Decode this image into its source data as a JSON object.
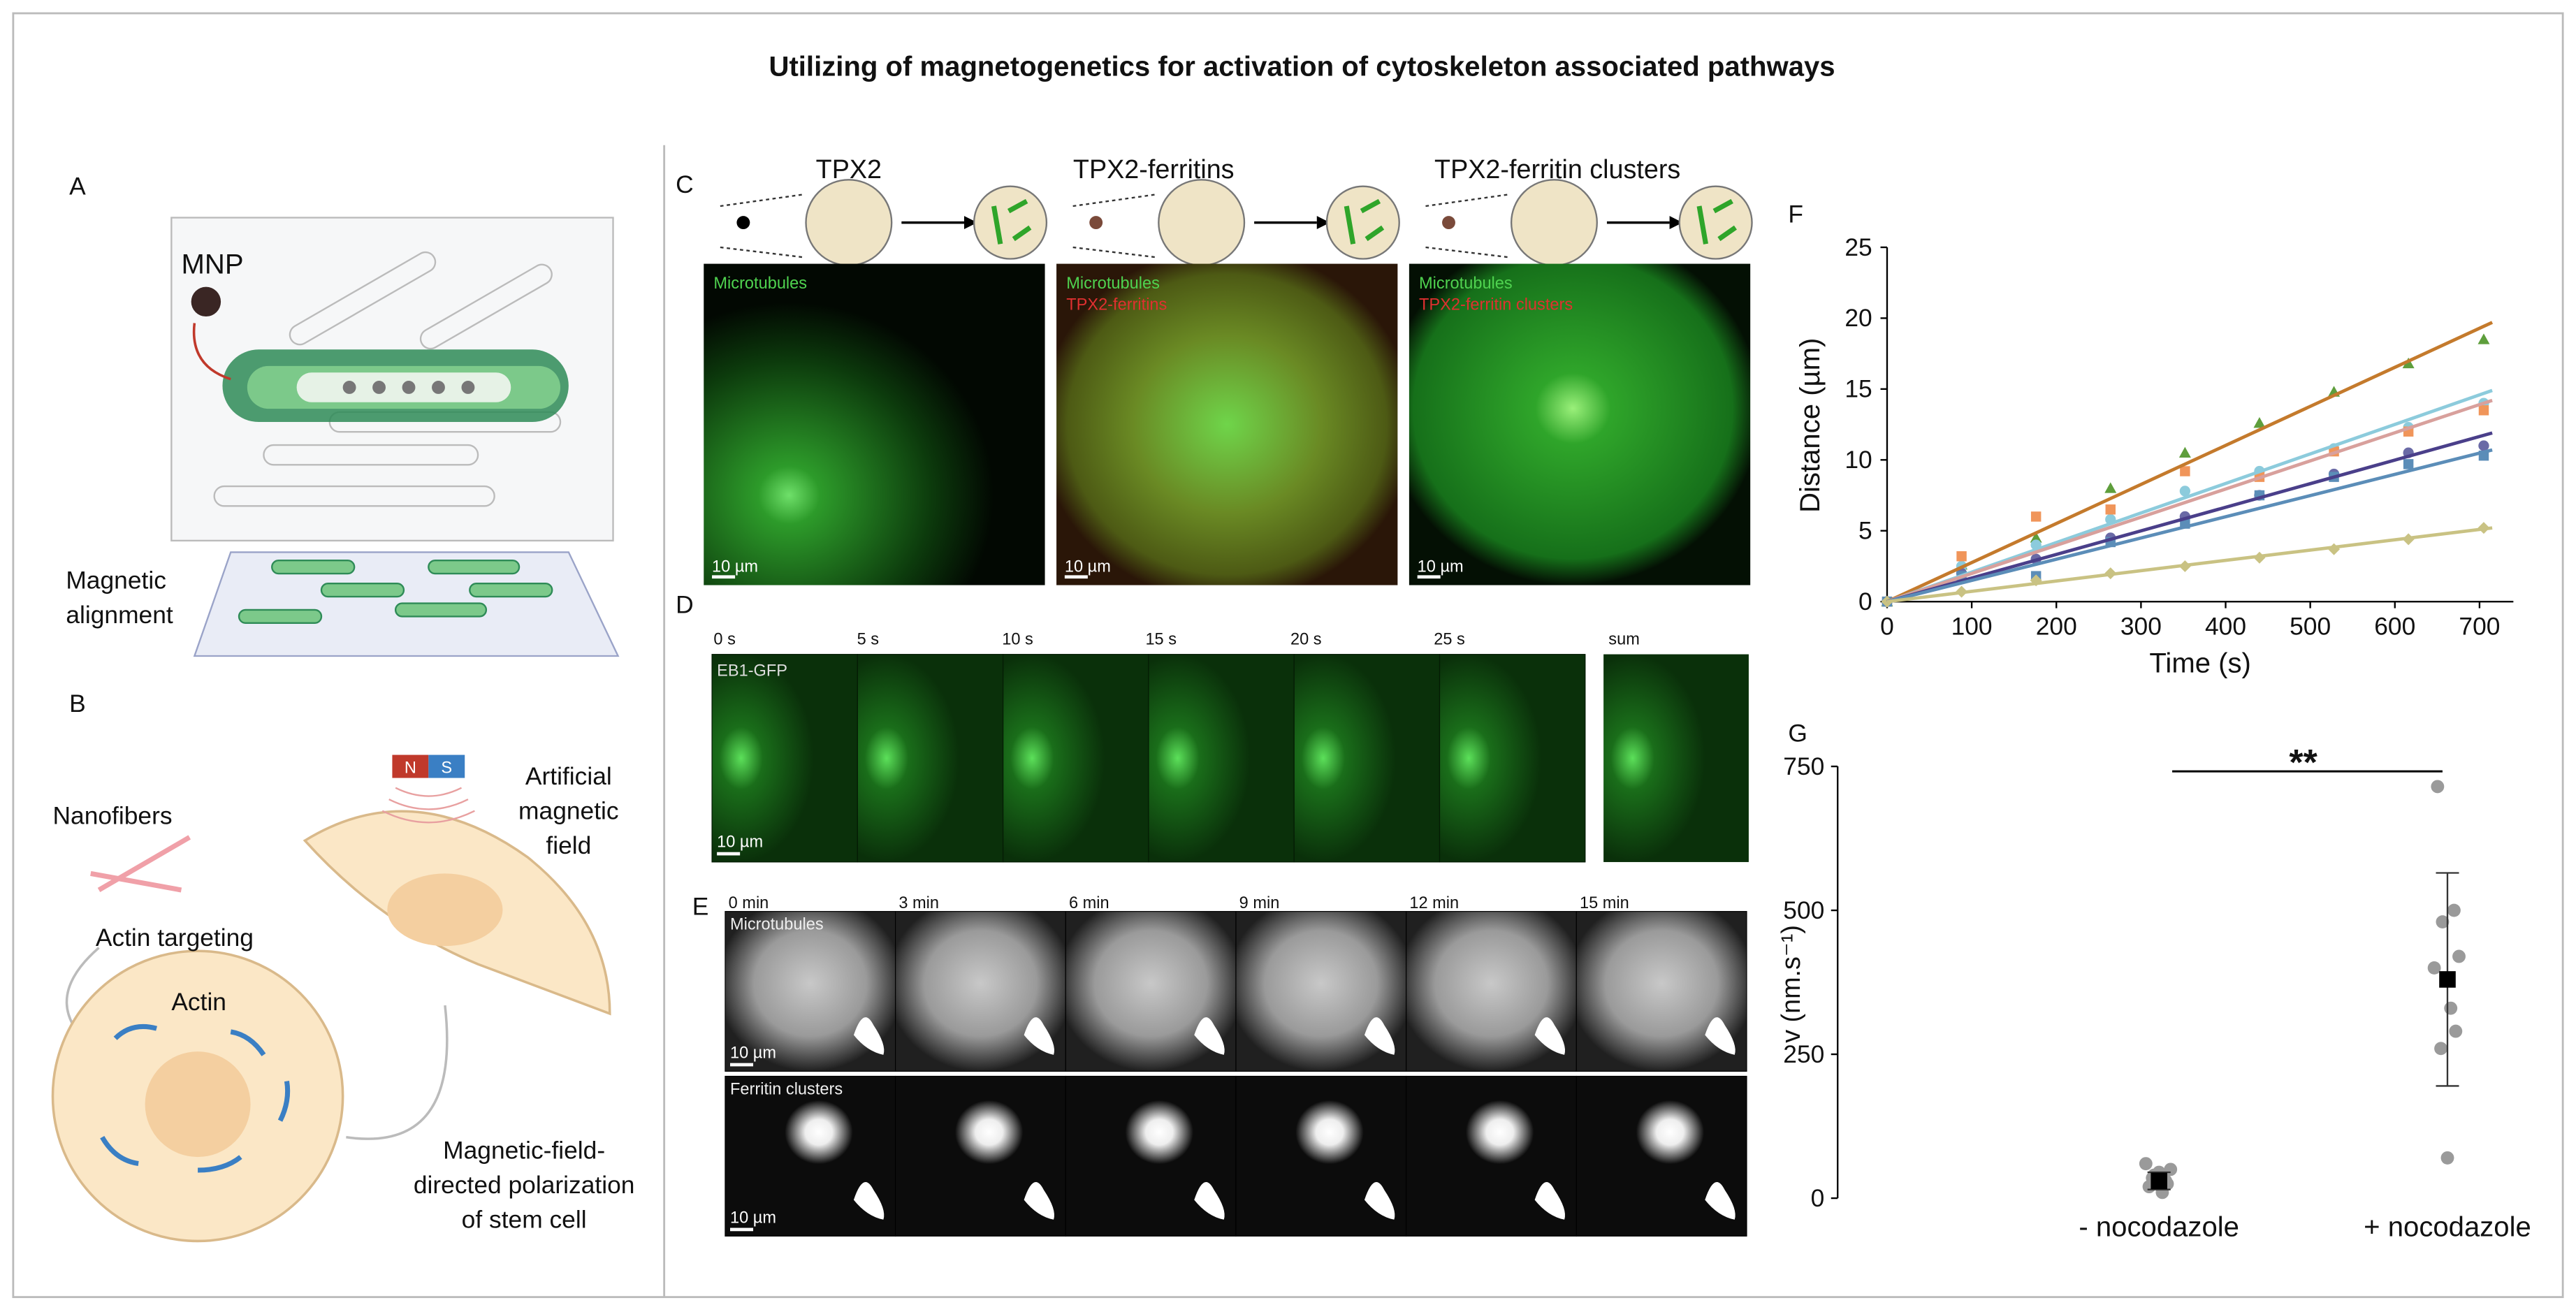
{
  "title": "Utilizing of magnetogenetics for activation of cytoskeleton associated pathways",
  "panel_a": {
    "label": "A",
    "mnp": "MNP",
    "alignment": [
      "Magnetic",
      "alignment"
    ]
  },
  "panel_b": {
    "label": "B",
    "nanofibers": "Nanofibers",
    "actin_targeting": "Actin targeting",
    "actin": "Actin",
    "magnet": [
      "N",
      "S"
    ],
    "field": [
      "Artificial",
      "magnetic",
      "field"
    ],
    "polarization": [
      "Magnetic-field-",
      "directed polarization",
      "of stem cell"
    ]
  },
  "panel_c": {
    "label": "C",
    "conditions": [
      {
        "name": "TPX2",
        "channels": [
          "Microtubules"
        ],
        "scale": "10 µm"
      },
      {
        "name": "TPX2-ferritins",
        "channels": [
          "Microtubules",
          "TPX2-ferritins"
        ],
        "scale": "10 µm"
      },
      {
        "name": "TPX2-ferritin clusters",
        "channels": [
          "Microtubules",
          "TPX2-ferritin clusters"
        ],
        "scale": "10 µm"
      }
    ]
  },
  "panel_d": {
    "label": "D",
    "times": [
      "0 s",
      "5 s",
      "10 s",
      "15 s",
      "20 s",
      "25 s"
    ],
    "sum": "sum",
    "channel": "EB1-GFP",
    "scale": "10 µm"
  },
  "panel_e": {
    "label": "E",
    "times": [
      "0 min",
      "3 min",
      "6 min",
      "9 min",
      "12 min",
      "15 min"
    ],
    "rows": [
      "Microtubules",
      "Ferritin clusters"
    ],
    "scale": "10 µm"
  },
  "chart_data": [
    {
      "type": "scatter",
      "panel_label": "F",
      "xlabel": "Time (s)",
      "ylabel": "Distance (µm)",
      "x": [
        0,
        88,
        176,
        264,
        352,
        440,
        528,
        616,
        705
      ],
      "xlim": [
        0,
        740
      ],
      "xticks": [
        0,
        100,
        200,
        300,
        400,
        500,
        600,
        700
      ],
      "ylim": [
        0,
        25
      ],
      "yticks": [
        0,
        5,
        10,
        15,
        20,
        25
      ],
      "series": [
        {
          "color": "#5e9e3c",
          "marker": "triangle",
          "values": [
            0,
            2.6,
            4.5,
            8,
            10.5,
            12.6,
            14.8,
            16.8,
            18.5
          ]
        },
        {
          "color": "#8ccbdc",
          "marker": "circle",
          "values": [
            0,
            2.5,
            4,
            5.8,
            7.8,
            9.2,
            10.8,
            12.3,
            14
          ]
        },
        {
          "color": "#f0955a",
          "marker": "square",
          "values": [
            0,
            3.2,
            6,
            6.5,
            9.2,
            8.8,
            10.6,
            12,
            13.5
          ]
        },
        {
          "color": "#6a6aa6",
          "marker": "circle",
          "values": [
            0,
            2,
            3,
            4.5,
            6,
            7.5,
            9,
            10.5,
            11
          ]
        },
        {
          "color": "#5b8db8",
          "marker": "square",
          "values": [
            0,
            1.8,
            1.8,
            4.2,
            5.5,
            7.5,
            8.8,
            9.7,
            10.3
          ]
        },
        {
          "color": "#c9c283",
          "marker": "diamond",
          "values": [
            0,
            0.7,
            1.5,
            2,
            2.5,
            3.1,
            3.7,
            4.4,
            5.2
          ]
        }
      ],
      "fits": [
        {
          "color": "#c47a2c",
          "x": [
            0,
            715
          ],
          "values": [
            0,
            19.7
          ]
        },
        {
          "color": "#8ccbdc",
          "x": [
            0,
            715
          ],
          "values": [
            0,
            14.9
          ]
        },
        {
          "color": "#d8a09c",
          "x": [
            0,
            715
          ],
          "values": [
            0,
            14.2
          ]
        },
        {
          "color": "#4a3f8a",
          "x": [
            0,
            715
          ],
          "values": [
            0,
            11.9
          ]
        },
        {
          "color": "#5b8db8",
          "x": [
            0,
            715
          ],
          "values": [
            0,
            10.7
          ]
        },
        {
          "color": "#c9c283",
          "x": [
            0,
            715
          ],
          "values": [
            0,
            5.2
          ]
        }
      ]
    },
    {
      "type": "dot",
      "panel_label": "G",
      "ylabel": "v (nm.s⁻¹)",
      "categories": [
        "- nocodazole",
        "+ nocodazole"
      ],
      "ylim": [
        0,
        750
      ],
      "yticks": [
        0,
        250,
        500,
        750
      ],
      "points": [
        [
          20,
          30,
          40,
          50,
          60,
          10,
          25,
          35,
          45
        ],
        [
          715,
          500,
          480,
          420,
          400,
          330,
          290,
          260,
          70
        ]
      ],
      "point_color": "#9a9a9a",
      "means": [
        30,
        380
      ],
      "errors": [
        15,
        185
      ],
      "mean_color": "#000000",
      "significance": "**"
    }
  ]
}
